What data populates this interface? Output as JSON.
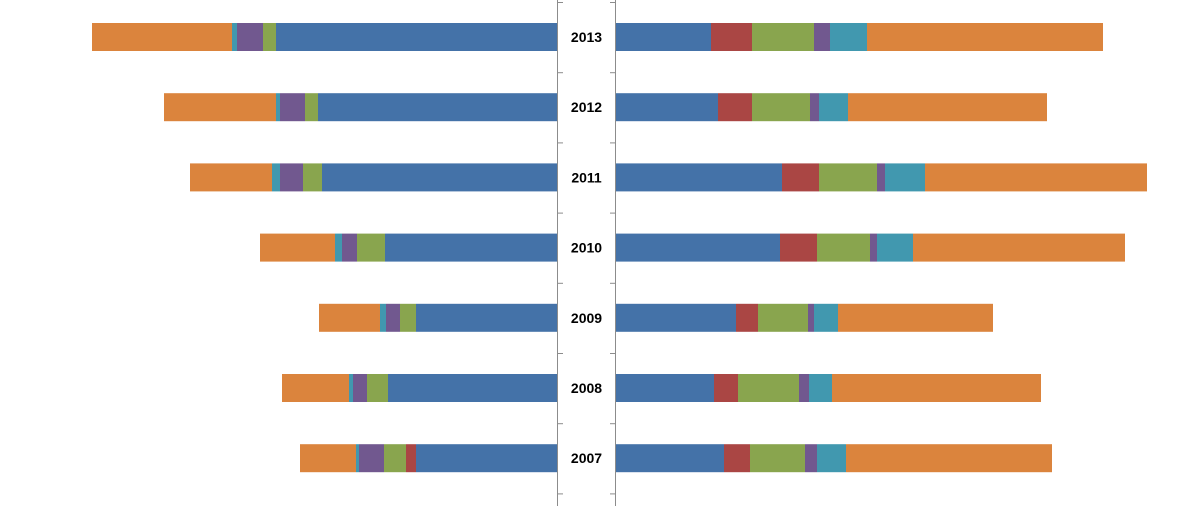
{
  "chart_data": {
    "type": "bar",
    "orientation": "horizontal-butterfly",
    "categories": [
      "2013",
      "2012",
      "2011",
      "2010",
      "2009",
      "2008",
      "2007"
    ],
    "series_colors": [
      "#4472a8",
      "#aa4644",
      "#89a54e",
      "#71588f",
      "#4198af",
      "#db843d"
    ],
    "left_panel": {
      "segment_order_from_center": [
        0,
        1,
        2,
        3,
        4,
        5
      ],
      "xlim": [
        0,
        470
      ],
      "rows": [
        [
          281,
          0,
          13,
          26,
          5,
          140
        ],
        [
          239,
          0,
          13,
          25,
          4,
          112
        ],
        [
          235,
          0,
          19,
          23,
          8,
          82
        ],
        [
          172,
          0,
          28,
          15,
          7,
          75
        ],
        [
          141,
          0,
          16,
          14,
          6,
          61
        ],
        [
          169,
          0,
          21,
          14,
          4,
          67
        ],
        [
          141,
          10,
          22,
          25,
          3,
          56
        ]
      ]
    },
    "right_panel": {
      "segment_order_from_center": [
        0,
        1,
        2,
        3,
        4,
        5
      ],
      "xlim": [
        0,
        540
      ],
      "rows": [
        [
          95,
          41,
          62,
          16,
          37,
          236
        ],
        [
          102,
          34,
          58,
          9,
          29,
          199
        ],
        [
          166,
          37,
          58,
          8,
          40,
          222
        ],
        [
          164,
          37,
          53,
          7,
          36,
          212
        ],
        [
          120,
          22,
          50,
          6,
          24,
          155
        ],
        [
          98,
          24,
          61,
          10,
          23,
          209
        ],
        [
          108,
          26,
          55,
          12,
          29,
          206
        ]
      ]
    },
    "grid": false,
    "legend": "none"
  }
}
